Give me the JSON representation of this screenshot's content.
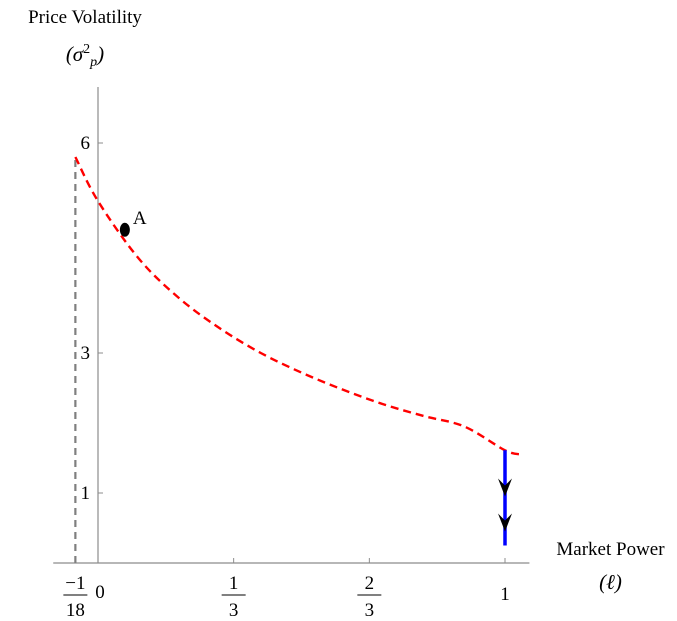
{
  "chart_data": {
    "type": "line",
    "title": "",
    "ylabel": "Price Volatility",
    "ylabel_symbol": "(σ_p²)",
    "xlabel": "Market Power",
    "xlabel_symbol": "(ℓ)",
    "xlim": [
      -0.11,
      1.06
    ],
    "ylim": [
      0,
      6.8
    ],
    "x_ticks": [
      {
        "value": -0.0556,
        "numerator": "−1",
        "denominator": "18"
      },
      {
        "value": 0,
        "label": "0"
      },
      {
        "value": 0.3333,
        "numerator": "1",
        "denominator": "3"
      },
      {
        "value": 0.6667,
        "numerator": "2",
        "denominator": "3"
      },
      {
        "value": 1,
        "label": "1"
      }
    ],
    "y_ticks": [
      {
        "value": 1,
        "label": "1"
      },
      {
        "value": 3,
        "label": "3"
      },
      {
        "value": 6,
        "label": "6"
      }
    ],
    "series": [
      {
        "color": "#ff0000",
        "style": "dashed",
        "x": [
          -0.0556,
          0,
          0.1,
          0.2,
          0.3,
          0.4,
          0.5,
          0.6,
          0.7,
          0.8,
          0.9,
          1.0,
          1.04
        ],
        "y": [
          5.8,
          5.17,
          4.35,
          3.78,
          3.35,
          3.0,
          2.72,
          2.48,
          2.27,
          2.1,
          1.95,
          1.61,
          1.55
        ]
      }
    ],
    "boundary_line": {
      "x": -0.0556,
      "y_from": 0,
      "y_to": 5.8,
      "color": "#7f7f7f",
      "style": "dashed"
    },
    "point": {
      "label": "A",
      "x": 0.066,
      "y": 4.76
    },
    "arrow": {
      "x": 1,
      "y_from": 1.61,
      "y_to": 0.25,
      "line_color": "#0000ff",
      "head_color": "#000000",
      "heads_at": [
        0.95,
        0.45
      ]
    }
  }
}
